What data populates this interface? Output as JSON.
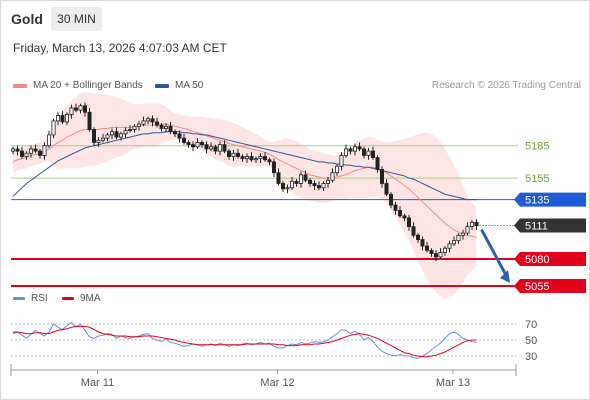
{
  "header": {
    "asset": "Gold",
    "timeframe": "30 MIN"
  },
  "timestamp": "Friday, March 13, 2026 4:07:03 AM CET",
  "legend": [
    {
      "label": "MA 20 + Bollinger Bands",
      "color": "#f08a8a"
    },
    {
      "label": "MA 50",
      "color": "#2f5597"
    }
  ],
  "credit": "Research © 2026 Trading Central",
  "chart_data": {
    "type": "candlestick",
    "ylim": [
      5042,
      5232
    ],
    "levels": [
      {
        "value": 5185,
        "label": "5185",
        "kind": "resistance-minor",
        "color": "#a4cf7d"
      },
      {
        "value": 5155,
        "label": "5155",
        "kind": "resistance-minor",
        "color": "#a4cf7d"
      },
      {
        "value": 5135,
        "label": "5135",
        "kind": "pivot",
        "color": "#1f5bd8"
      },
      {
        "value": 5111,
        "label": "5111",
        "kind": "last-price",
        "color": "#333333"
      },
      {
        "value": 5080,
        "label": "5080",
        "kind": "support",
        "color": "#e3001b"
      },
      {
        "value": 5055,
        "label": "5055",
        "kind": "support",
        "color": "#e3001b"
      }
    ],
    "closes": [
      5182,
      5180,
      5175,
      5178,
      5182,
      5180,
      5176,
      5185,
      5195,
      5208,
      5213,
      5207,
      5214,
      5220,
      5218,
      5222,
      5216,
      5200,
      5188,
      5190,
      5192,
      5195,
      5198,
      5193,
      5196,
      5199,
      5200,
      5203,
      5205,
      5208,
      5210,
      5207,
      5204,
      5201,
      5203,
      5198,
      5196,
      5192,
      5188,
      5186,
      5184,
      5188,
      5186,
      5182,
      5184,
      5180,
      5186,
      5180,
      5175,
      5178,
      5175,
      5173,
      5175,
      5172,
      5173,
      5175,
      5172,
      5170,
      5160,
      5150,
      5145,
      5146,
      5152,
      5150,
      5158,
      5153,
      5150,
      5148,
      5146,
      5150,
      5153,
      5160,
      5166,
      5176,
      5182,
      5180,
      5184,
      5182,
      5176,
      5180,
      5174,
      5163,
      5150,
      5140,
      5130,
      5125,
      5120,
      5118,
      5110,
      5102,
      5098,
      5092,
      5088,
      5085,
      5082,
      5086,
      5090,
      5094,
      5097,
      5102,
      5104,
      5110,
      5114,
      5111
    ],
    "ma20": [
      5170,
      5172,
      5173,
      5174,
      5176,
      5177,
      5178,
      5180,
      5182,
      5185,
      5188,
      5190,
      5193,
      5195,
      5197,
      5199,
      5200,
      5200,
      5200,
      5200,
      5201,
      5201,
      5202,
      5202,
      5202,
      5202,
      5202,
      5203,
      5203,
      5204,
      5204,
      5204,
      5205,
      5205,
      5205,
      5204,
      5203,
      5202,
      5201,
      5200,
      5198,
      5197,
      5196,
      5194,
      5193,
      5191,
      5190,
      5189,
      5187,
      5186,
      5185,
      5184,
      5183,
      5182,
      5181,
      5180,
      5179,
      5177,
      5175,
      5172,
      5170,
      5168,
      5166,
      5164,
      5162,
      5160,
      5158,
      5157,
      5156,
      5155,
      5155,
      5155,
      5156,
      5157,
      5158,
      5160,
      5162,
      5163,
      5164,
      5165,
      5165,
      5164,
      5162,
      5160,
      5157,
      5154,
      5151,
      5148,
      5145,
      5141,
      5137,
      5133,
      5129,
      5125,
      5121,
      5117,
      5113,
      5110,
      5107,
      5105,
      5103,
      5102,
      5101,
      5100
    ],
    "ma50": [
      5138,
      5142,
      5146,
      5150,
      5153,
      5156,
      5159,
      5162,
      5165,
      5168,
      5171,
      5173,
      5175,
      5177,
      5179,
      5181,
      5183,
      5184,
      5185,
      5186,
      5187,
      5188,
      5189,
      5190,
      5191,
      5192,
      5193,
      5194,
      5195,
      5196,
      5196,
      5197,
      5197,
      5197,
      5198,
      5198,
      5198,
      5198,
      5197,
      5197,
      5196,
      5196,
      5195,
      5195,
      5194,
      5193,
      5192,
      5191,
      5190,
      5189,
      5188,
      5187,
      5186,
      5185,
      5184,
      5183,
      5182,
      5181,
      5180,
      5179,
      5178,
      5177,
      5176,
      5175,
      5174,
      5173,
      5172,
      5171,
      5170,
      5170,
      5169,
      5169,
      5168,
      5168,
      5167,
      5167,
      5166,
      5166,
      5165,
      5165,
      5164,
      5163,
      5162,
      5161,
      5160,
      5159,
      5158,
      5157,
      5155,
      5154,
      5152,
      5150,
      5148,
      5146,
      5144,
      5142,
      5140,
      5139,
      5138,
      5137,
      5136,
      5135,
      5135,
      5135
    ],
    "rsi": {
      "label": "RSI",
      "ma_label": "9MA",
      "ticks": [
        70,
        50,
        30
      ],
      "ylim": [
        20,
        85
      ],
      "values": [
        58,
        60,
        56,
        52,
        57,
        62,
        58,
        55,
        60,
        70,
        66,
        63,
        68,
        72,
        66,
        70,
        62,
        54,
        52,
        55,
        56,
        58,
        57,
        52,
        55,
        53,
        52,
        54,
        55,
        57,
        58,
        52,
        50,
        48,
        51,
        47,
        46,
        44,
        42,
        43,
        45,
        44,
        42,
        44,
        45,
        43,
        46,
        44,
        42,
        44,
        43,
        45,
        46,
        44,
        45,
        47,
        45,
        46,
        42,
        40,
        40,
        43,
        45,
        44,
        47,
        45,
        46,
        48,
        47,
        48,
        50,
        54,
        58,
        63,
        62,
        58,
        61,
        57,
        50,
        53,
        48,
        41,
        36,
        33,
        31,
        30,
        32,
        30,
        30,
        28,
        27,
        30,
        33,
        38,
        42,
        46,
        52,
        58,
        60,
        57,
        52,
        50,
        48,
        47
      ],
      "ma": [
        60,
        60,
        59,
        58,
        58,
        59,
        59,
        58,
        58,
        60,
        62,
        63,
        64,
        66,
        67,
        67,
        67,
        66,
        63,
        60,
        58,
        57,
        56,
        55,
        55,
        55,
        54,
        54,
        54,
        55,
        55,
        55,
        54,
        53,
        52,
        51,
        50,
        48,
        47,
        46,
        45,
        44,
        44,
        44,
        44,
        44,
        44,
        44,
        44,
        44,
        44,
        44,
        45,
        45,
        45,
        45,
        45,
        45,
        45,
        44,
        44,
        43,
        43,
        43,
        44,
        44,
        44,
        45,
        45,
        46,
        47,
        48,
        50,
        52,
        54,
        56,
        57,
        58,
        57,
        56,
        54,
        52,
        49,
        46,
        43,
        40,
        37,
        34,
        33,
        31,
        30,
        29,
        29,
        30,
        31,
        33,
        35,
        38,
        41,
        44,
        47,
        49,
        50,
        50
      ]
    },
    "x_ticks": [
      {
        "label": "Mar 11",
        "index": 21
      },
      {
        "label": "Mar 12",
        "index": 61
      },
      {
        "label": "Mar 13",
        "index": 100
      }
    ]
  }
}
